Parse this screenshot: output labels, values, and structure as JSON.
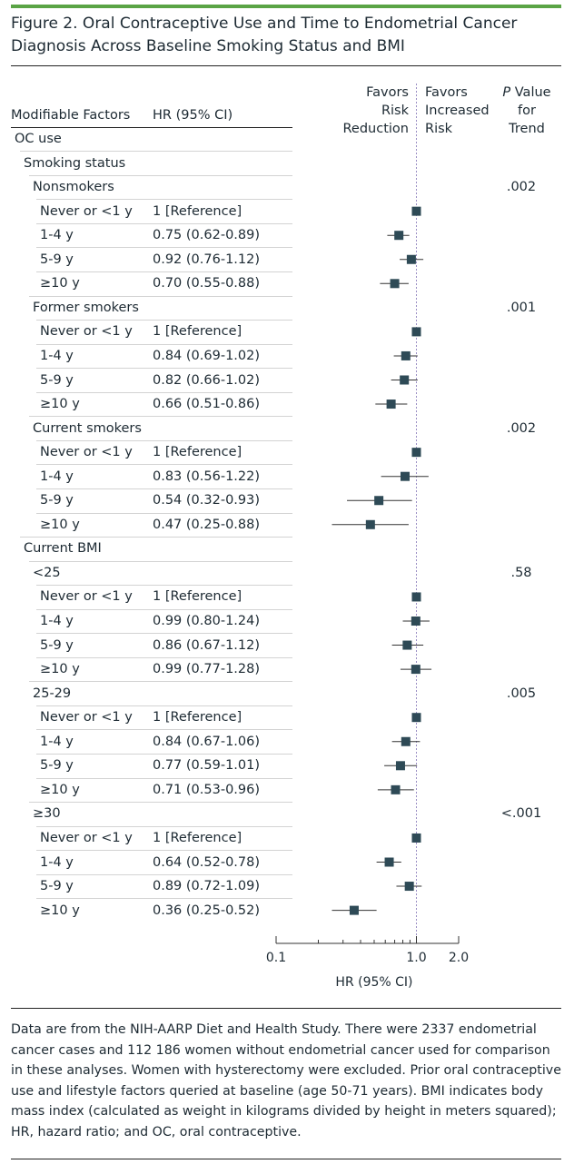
{
  "figure": {
    "title": "Figure 2. Oral Contraceptive Use and Time to Endometrial Cancer Diagnosis Across Baseline Smoking Status and BMI"
  },
  "headers": {
    "factors": "Modifiable Factors",
    "hr": "HR (95% CI)",
    "favors_left": [
      "Favors",
      "Risk",
      "Reduction"
    ],
    "favors_right": [
      "Favors",
      "Increased",
      "Risk"
    ],
    "p_value_italic": "P",
    "p_value_rest": " Value",
    "p_value_line2": "for Trend"
  },
  "chart_data": {
    "type": "forest",
    "xlabel": "HR (95% CI)",
    "x_scale": "log",
    "xlim": [
      0.1,
      2.0
    ],
    "xticks": [
      "0.1",
      "1.0",
      "2.0"
    ],
    "reference_line": 1.0,
    "rows": [
      {
        "label": "OC use",
        "level": 0
      },
      {
        "label": "Smoking status",
        "level": 1
      },
      {
        "label": "Nonsmokers",
        "level": 2,
        "p_trend": ".002"
      },
      {
        "label": "Never or <1 y",
        "level": 3,
        "hr_text": "1 [Reference]",
        "hr": 1.0,
        "lo": 1.0,
        "hi": 1.0
      },
      {
        "label": "1-4 y",
        "level": 3,
        "hr_text": "0.75 (0.62-0.89)",
        "hr": 0.75,
        "lo": 0.62,
        "hi": 0.89
      },
      {
        "label": "5-9 y",
        "level": 3,
        "hr_text": "0.92 (0.76-1.12)",
        "hr": 0.92,
        "lo": 0.76,
        "hi": 1.12
      },
      {
        "label": "≥10 y",
        "level": 3,
        "hr_text": "0.70 (0.55-0.88)",
        "hr": 0.7,
        "lo": 0.55,
        "hi": 0.88
      },
      {
        "label": "Former smokers",
        "level": 2,
        "p_trend": ".001"
      },
      {
        "label": "Never or <1 y",
        "level": 3,
        "hr_text": "1 [Reference]",
        "hr": 1.0,
        "lo": 1.0,
        "hi": 1.0
      },
      {
        "label": "1-4 y",
        "level": 3,
        "hr_text": "0.84 (0.69-1.02)",
        "hr": 0.84,
        "lo": 0.69,
        "hi": 1.02
      },
      {
        "label": "5-9 y",
        "level": 3,
        "hr_text": "0.82 (0.66-1.02)",
        "hr": 0.82,
        "lo": 0.66,
        "hi": 1.02
      },
      {
        "label": "≥10 y",
        "level": 3,
        "hr_text": "0.66 (0.51-0.86)",
        "hr": 0.66,
        "lo": 0.51,
        "hi": 0.86
      },
      {
        "label": "Current smokers",
        "level": 2,
        "p_trend": ".002"
      },
      {
        "label": "Never or <1 y",
        "level": 3,
        "hr_text": "1 [Reference]",
        "hr": 1.0,
        "lo": 1.0,
        "hi": 1.0
      },
      {
        "label": "1-4 y",
        "level": 3,
        "hr_text": "0.83 (0.56-1.22)",
        "hr": 0.83,
        "lo": 0.56,
        "hi": 1.22
      },
      {
        "label": "5-9 y",
        "level": 3,
        "hr_text": "0.54 (0.32-0.93)",
        "hr": 0.54,
        "lo": 0.32,
        "hi": 0.93
      },
      {
        "label": "≥10 y",
        "level": 3,
        "hr_text": "0.47 (0.25-0.88)",
        "hr": 0.47,
        "lo": 0.25,
        "hi": 0.88
      },
      {
        "label": "Current BMI",
        "level": 1
      },
      {
        "label": "<25",
        "level": 2,
        "p_trend": ".58"
      },
      {
        "label": "Never or <1 y",
        "level": 3,
        "hr_text": "1 [Reference]",
        "hr": 1.0,
        "lo": 1.0,
        "hi": 1.0
      },
      {
        "label": "1-4 y",
        "level": 3,
        "hr_text": "0.99 (0.80-1.24)",
        "hr": 0.99,
        "lo": 0.8,
        "hi": 1.24
      },
      {
        "label": "5-9 y",
        "level": 3,
        "hr_text": "0.86 (0.67-1.12)",
        "hr": 0.86,
        "lo": 0.67,
        "hi": 1.12
      },
      {
        "label": "≥10 y",
        "level": 3,
        "hr_text": "0.99 (0.77-1.28)",
        "hr": 0.99,
        "lo": 0.77,
        "hi": 1.28
      },
      {
        "label": "25-29",
        "level": 2,
        "p_trend": ".005"
      },
      {
        "label": "Never or <1 y",
        "level": 3,
        "hr_text": "1 [Reference]",
        "hr": 1.0,
        "lo": 1.0,
        "hi": 1.0
      },
      {
        "label": "1-4 y",
        "level": 3,
        "hr_text": "0.84 (0.67-1.06)",
        "hr": 0.84,
        "lo": 0.67,
        "hi": 1.06
      },
      {
        "label": "5-9 y",
        "level": 3,
        "hr_text": "0.77 (0.59-1.01)",
        "hr": 0.77,
        "lo": 0.59,
        "hi": 1.01
      },
      {
        "label": "≥10 y",
        "level": 3,
        "hr_text": "0.71 (0.53-0.96)",
        "hr": 0.71,
        "lo": 0.53,
        "hi": 0.96
      },
      {
        "label": "≥30",
        "level": 2,
        "p_trend": "<.001"
      },
      {
        "label": "Never or <1 y",
        "level": 3,
        "hr_text": "1 [Reference]",
        "hr": 1.0,
        "lo": 1.0,
        "hi": 1.0
      },
      {
        "label": "1-4 y",
        "level": 3,
        "hr_text": "0.64 (0.52-0.78)",
        "hr": 0.64,
        "lo": 0.52,
        "hi": 0.78
      },
      {
        "label": "5-9 y",
        "level": 3,
        "hr_text": "0.89 (0.72-1.09)",
        "hr": 0.89,
        "lo": 0.72,
        "hi": 1.09
      },
      {
        "label": "≥10 y",
        "level": 3,
        "hr_text": "0.36 (0.25-0.52)",
        "hr": 0.36,
        "lo": 0.25,
        "hi": 0.52
      }
    ]
  },
  "footnote": "Data are from the NIH-AARP Diet and Health Study. There were 2337 endometrial cancer cases and 112 186 women without endometrial cancer used for comparison in these analyses. Women with hysterectomy were excluded. Prior oral contraceptive use and lifestyle factors queried at baseline (age 50-71 years). BMI indicates body mass index (calculated as weight in kilograms divided by height in meters squared); HR, hazard ratio; and OC, oral contraceptive.",
  "colors": {
    "accent_bar": "#5aa445",
    "marker": "#2e4a56",
    "reference_line": "#9a8ec4"
  }
}
